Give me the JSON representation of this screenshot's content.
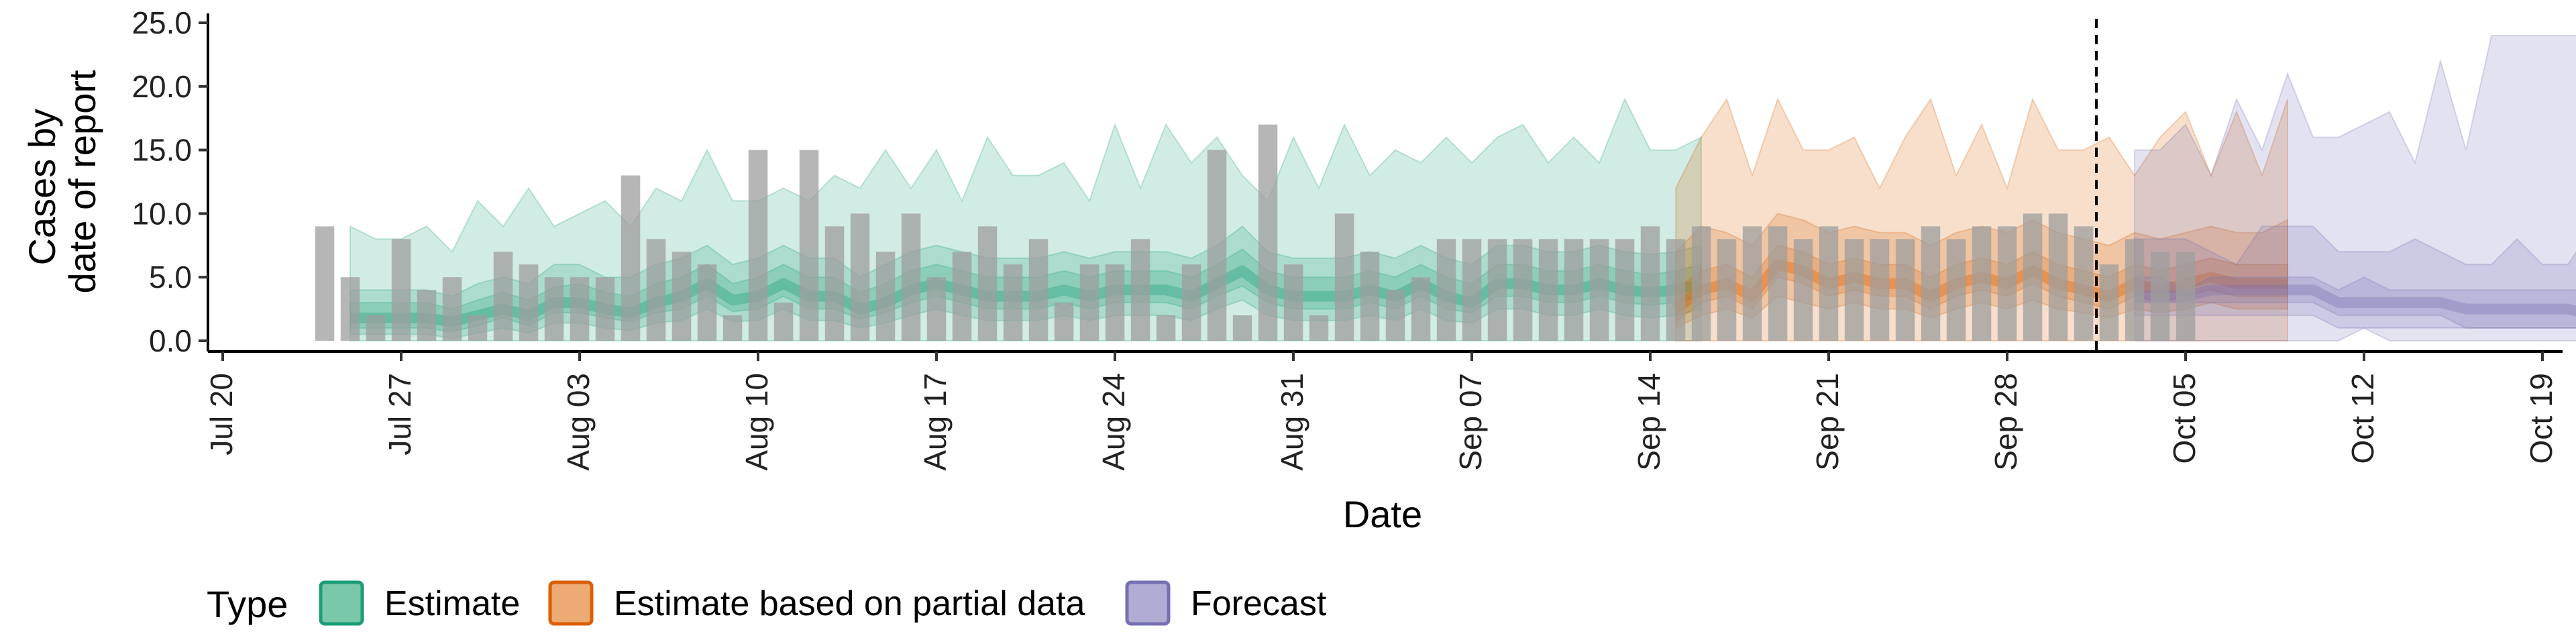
{
  "chart_data": {
    "type": "area",
    "xlabel": "Date",
    "ylabel_lines": [
      "Cases by",
      "date of report"
    ],
    "ylim": [
      0,
      25
    ],
    "y_ticks": [
      0,
      5,
      10,
      15,
      20,
      25
    ],
    "y_tick_labels": [
      "0.0",
      "5.0",
      "10.0",
      "15.0",
      "20.0",
      "25.0"
    ],
    "x_range": [
      "2020-07-20",
      "2020-10-19"
    ],
    "x_ticks": [
      "2020-07-20",
      "2020-07-27",
      "2020-08-03",
      "2020-08-10",
      "2020-08-17",
      "2020-08-24",
      "2020-08-31",
      "2020-09-07",
      "2020-09-14",
      "2020-09-21",
      "2020-09-28",
      "2020-10-05",
      "2020-10-12",
      "2020-10-19"
    ],
    "x_tick_labels": [
      "Jul 20",
      "Jul 27",
      "Aug 03",
      "Aug 10",
      "Aug 17",
      "Aug 24",
      "Aug 31",
      "Sep 07",
      "Sep 14",
      "Sep 21",
      "Sep 28",
      "Oct 05",
      "Oct 12",
      "Oct 19"
    ],
    "forecast_date": "2020-10-02",
    "grid": false,
    "legend": {
      "title": "Type",
      "position": "bottom",
      "entries": [
        {
          "label": "Estimate",
          "fill": "#79c8a9",
          "stroke": "#1b9e77"
        },
        {
          "label": "Estimate based on partial data",
          "fill": "#ecaa74",
          "stroke": "#d95f02"
        },
        {
          "label": "Forecast",
          "fill": "#b0acd4",
          "stroke": "#7570b3"
        }
      ]
    },
    "reported_cases": {
      "start_date": "2020-07-24",
      "color": "#9e9e9e",
      "values": [
        9,
        5,
        2,
        8,
        4,
        5,
        2,
        7,
        6,
        5,
        5,
        5,
        13,
        8,
        7,
        6,
        2,
        15,
        3,
        15,
        9,
        10,
        7,
        10,
        5,
        7,
        9,
        6,
        8,
        3,
        6,
        6,
        8,
        2,
        6,
        15,
        2,
        17,
        6,
        2,
        10,
        7,
        4,
        5,
        8,
        8,
        8,
        8,
        8,
        8,
        8,
        8,
        9,
        8,
        9,
        8,
        9,
        9,
        8,
        9,
        8,
        8,
        8,
        9,
        8,
        9,
        9,
        10,
        10,
        9,
        6,
        8,
        7,
        7
      ]
    },
    "series": [
      {
        "name": "Estimate",
        "fill": "#1b9e77",
        "start_date": "2020-07-25",
        "median": [
          1.8,
          1.8,
          1.8,
          1.8,
          1.5,
          2.0,
          2.5,
          2.0,
          3.0,
          3.0,
          2.5,
          2.2,
          3.0,
          3.5,
          4.5,
          3.2,
          3.5,
          4.5,
          3.5,
          3.5,
          2.5,
          3.0,
          4.0,
          4.5,
          4.0,
          3.5,
          3.5,
          3.5,
          4.0,
          3.5,
          4.0,
          4.0,
          4.0,
          3.5,
          4.5,
          5.5,
          4.0,
          3.5,
          3.5,
          3.5,
          4.0,
          3.5,
          4.5,
          3.5,
          3.0,
          4.5,
          4.5,
          4.0,
          4.0,
          4.5,
          4.0,
          3.8,
          4.0,
          4.5
        ],
        "inner_low": [
          1.0,
          1.0,
          1.0,
          1.0,
          0.7,
          1.2,
          1.8,
          1.2,
          2.2,
          2.2,
          1.8,
          1.5,
          2.2,
          2.5,
          3.5,
          2.3,
          2.5,
          3.5,
          2.5,
          2.5,
          1.7,
          2.2,
          3.0,
          3.5,
          3.0,
          2.5,
          2.5,
          2.5,
          3.0,
          2.5,
          3.0,
          3.0,
          3.0,
          2.5,
          3.5,
          4.3,
          3.0,
          2.5,
          2.5,
          2.5,
          3.0,
          2.5,
          3.5,
          2.5,
          2.2,
          3.5,
          3.5,
          3.0,
          3.0,
          3.5,
          3.0,
          2.8,
          3.0,
          3.5
        ],
        "inner_high": [
          3.0,
          3.0,
          3.0,
          3.0,
          2.5,
          3.2,
          3.8,
          3.2,
          4.2,
          4.5,
          3.8,
          3.5,
          4.5,
          5.0,
          6.0,
          4.5,
          5.0,
          6.0,
          5.0,
          5.0,
          3.8,
          4.5,
          5.5,
          6.0,
          5.5,
          5.0,
          5.0,
          5.0,
          5.5,
          5.0,
          5.5,
          5.5,
          5.5,
          5.0,
          6.0,
          7.2,
          5.5,
          5.0,
          5.0,
          5.0,
          5.5,
          5.0,
          6.0,
          5.0,
          4.5,
          6.0,
          6.0,
          5.5,
          5.5,
          6.0,
          5.5,
          5.2,
          5.5,
          6.0
        ],
        "mid_low": [
          0.5,
          0.5,
          0.5,
          0.5,
          0.2,
          0.6,
          1.0,
          0.6,
          1.4,
          1.4,
          1.0,
          0.8,
          1.4,
          1.6,
          2.5,
          1.5,
          1.6,
          2.5,
          1.6,
          1.6,
          1.0,
          1.4,
          2.0,
          2.5,
          2.0,
          1.6,
          1.6,
          1.6,
          2.0,
          1.6,
          2.0,
          2.0,
          2.0,
          1.6,
          2.5,
          3.2,
          2.0,
          1.6,
          1.6,
          1.6,
          2.0,
          1.6,
          2.5,
          1.6,
          1.4,
          2.5,
          2.5,
          2.0,
          2.0,
          2.5,
          2.0,
          1.8,
          2.0,
          2.5
        ],
        "mid_high": [
          4.0,
          4.0,
          4.0,
          4.0,
          3.5,
          4.5,
          5.0,
          4.5,
          6.0,
          6.0,
          5.0,
          5.0,
          6.0,
          6.5,
          7.5,
          6.0,
          6.5,
          7.5,
          6.5,
          6.5,
          5.0,
          6.0,
          7.0,
          7.5,
          7.0,
          6.5,
          6.5,
          6.5,
          7.0,
          6.5,
          7.0,
          7.0,
          7.0,
          6.5,
          7.5,
          9.0,
          7.0,
          6.5,
          6.5,
          6.5,
          7.0,
          6.5,
          7.5,
          6.5,
          6.0,
          7.5,
          7.5,
          7.0,
          7.0,
          7.5,
          7.0,
          6.8,
          7.0,
          7.5
        ],
        "outer_low": [
          0,
          0,
          0,
          0,
          0,
          0,
          0,
          0,
          0,
          0,
          0,
          0,
          0,
          0,
          0,
          0,
          0,
          0,
          0,
          0,
          0,
          0,
          0,
          0,
          0,
          0,
          0,
          0,
          0,
          0,
          0,
          0,
          0,
          0,
          0,
          0,
          0,
          0,
          0,
          0,
          0,
          0,
          0,
          0,
          0,
          0,
          0,
          0,
          0,
          0,
          0,
          0,
          0,
          0
        ],
        "outer_high": [
          9,
          8,
          8,
          9,
          7,
          11,
          9,
          12,
          9,
          10,
          11,
          9,
          12,
          11,
          15,
          11,
          11,
          12,
          11,
          13,
          12,
          15,
          12,
          15,
          11,
          16,
          13,
          13,
          14,
          11,
          17,
          12,
          17,
          14,
          16,
          13,
          11,
          16,
          12,
          17,
          13,
          15,
          14,
          16,
          14,
          16,
          17,
          14,
          16,
          14,
          19,
          15,
          15,
          16
        ]
      },
      {
        "name": "Estimate based on partial data",
        "fill": "#d95f02",
        "start_date": "2020-09-15",
        "median": [
          2.5,
          4.0,
          4.5,
          3.5,
          6.0,
          5.5,
          4.5,
          5.0,
          4.5,
          4.5,
          3.5,
          4.5,
          5.0,
          4.5,
          5.5,
          4.5,
          4.0,
          3.5,
          4.5,
          4.0,
          4.5,
          5.0,
          4.5,
          4.5,
          4.5
        ],
        "inner_low": [
          1.5,
          3.0,
          3.5,
          2.5,
          5.0,
          4.5,
          3.5,
          4.0,
          3.5,
          3.5,
          2.5,
          3.5,
          4.0,
          3.5,
          4.5,
          3.5,
          3.0,
          2.5,
          3.5,
          3.0,
          3.5,
          4.0,
          3.5,
          3.5,
          3.5
        ],
        "inner_high": [
          4.0,
          5.5,
          6.0,
          5.0,
          7.5,
          7.0,
          6.0,
          6.5,
          6.0,
          6.0,
          5.0,
          6.0,
          6.5,
          6.0,
          7.0,
          6.0,
          5.5,
          5.0,
          6.0,
          5.5,
          6.0,
          6.5,
          6.0,
          6.0,
          6.0
        ],
        "mid_low": [
          1.0,
          2.0,
          2.5,
          1.8,
          3.5,
          3.0,
          2.5,
          3.0,
          2.5,
          2.5,
          1.8,
          2.5,
          3.0,
          2.5,
          3.2,
          2.5,
          2.2,
          1.8,
          2.5,
          2.2,
          2.5,
          3.0,
          2.5,
          2.5,
          2.5
        ],
        "mid_high": [
          7.0,
          9.0,
          8.5,
          7.5,
          10.0,
          9.5,
          8.5,
          9.0,
          8.5,
          8.5,
          7.5,
          8.5,
          9.0,
          8.5,
          9.5,
          8.5,
          8.0,
          7.5,
          8.5,
          8.0,
          8.5,
          9.0,
          8.5,
          8.5,
          9.5
        ],
        "outer_low": [
          0,
          0,
          0,
          0,
          0,
          0,
          0,
          0,
          0,
          0,
          0,
          0,
          0,
          0,
          0,
          0,
          0,
          0,
          0,
          0,
          0,
          0,
          0,
          0,
          0
        ],
        "outer_high": [
          12,
          16,
          19,
          13,
          19,
          15,
          15,
          16,
          12,
          16,
          19,
          13,
          17,
          12,
          19,
          15,
          15,
          16,
          13,
          16,
          18,
          13,
          18,
          13,
          19
        ]
      },
      {
        "name": "Forecast",
        "fill": "#7570b3",
        "start_date": "2020-10-03",
        "median": [
          3.5,
          3.5,
          3.5,
          4.0,
          4.0,
          4.0,
          4.0,
          4.0,
          3.0,
          3.0,
          3.0,
          3.0,
          3.0,
          2.5,
          2.5,
          2.5,
          2.5,
          2.5,
          2.0
        ],
        "inner_low": [
          3.0,
          3.0,
          3.0,
          3.0,
          3.0,
          3.0,
          3.0,
          3.0,
          2.0,
          2.0,
          2.0,
          2.0,
          2.0,
          1.0,
          1.0,
          1.0,
          1.0,
          1.0,
          1.0
        ],
        "inner_high": [
          5.0,
          5.0,
          4.0,
          5.0,
          5.0,
          5.0,
          5.0,
          5.0,
          4.0,
          5.0,
          4.0,
          4.0,
          4.0,
          4.0,
          4.0,
          4.0,
          4.0,
          4.0,
          4.0
        ],
        "mid_low": [
          2.0,
          2.0,
          2.0,
          2.0,
          2.0,
          2.0,
          2.0,
          2.0,
          1.0,
          1.0,
          1.0,
          1.0,
          1.0,
          1.0,
          1.0,
          1.0,
          1.0,
          1.0,
          1.0
        ],
        "mid_high": [
          8.0,
          8.0,
          8.0,
          7.0,
          6.0,
          9.0,
          9.0,
          9.0,
          7.0,
          7.0,
          7.0,
          8.0,
          7.0,
          6.0,
          6.0,
          8.0,
          6.0,
          6.0,
          9.0
        ],
        "outer_low": [
          0,
          0,
          0,
          0,
          0,
          0,
          0,
          0,
          0,
          1,
          0,
          0,
          0,
          0,
          0,
          0,
          0,
          0,
          0
        ],
        "outer_high": [
          15,
          15,
          17,
          13,
          19,
          15,
          21,
          16,
          16,
          17,
          18,
          14,
          22,
          15,
          24,
          24,
          24,
          24,
          24
        ]
      }
    ]
  }
}
